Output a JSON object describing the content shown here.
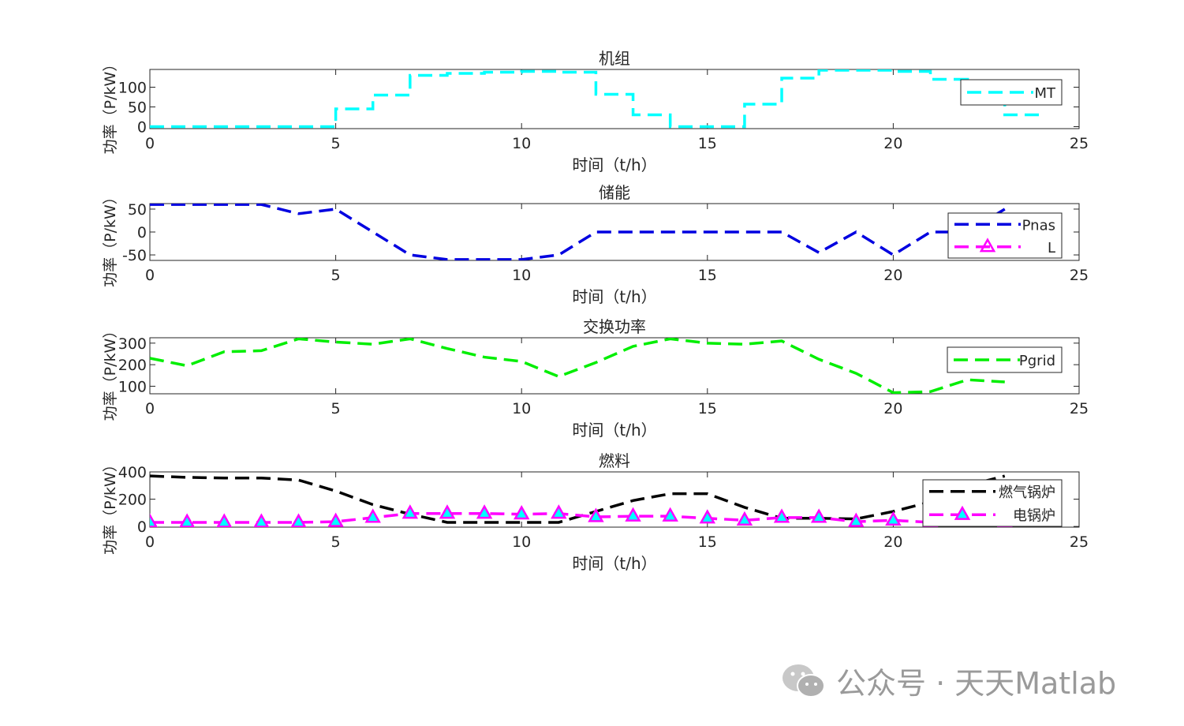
{
  "watermark": {
    "text": "公众号 · 天天Matlab",
    "icon": "wechat-icon"
  },
  "chart_data": [
    {
      "type": "line",
      "title": "机组",
      "xlabel": "时间（t/h）",
      "ylabel": "功率（P/kW）",
      "xlim": [
        0,
        25
      ],
      "ylim": [
        -5,
        145
      ],
      "xticks": [
        0,
        5,
        10,
        15,
        20,
        25
      ],
      "yticks": [
        0,
        50,
        100
      ],
      "legend_position": "top-right",
      "series": [
        {
          "name": "MT",
          "color": "#00ffff",
          "style": "stairs",
          "marker": "none",
          "x": [
            0,
            1,
            2,
            3,
            4,
            5,
            6,
            7,
            8,
            9,
            10,
            11,
            12,
            13,
            14,
            15,
            16,
            17,
            18,
            19,
            20,
            21,
            22,
            23
          ],
          "y": [
            0,
            0,
            0,
            0,
            0,
            45,
            80,
            130,
            135,
            138,
            140,
            138,
            82,
            30,
            0,
            0,
            57,
            123,
            143,
            143,
            140,
            120,
            80,
            30
          ]
        }
      ]
    },
    {
      "type": "line",
      "title": "储能",
      "xlabel": "时间（t/h）",
      "ylabel": "功率（P/kW）",
      "xlim": [
        0,
        25
      ],
      "ylim": [
        -62,
        62
      ],
      "xticks": [
        0,
        5,
        10,
        15,
        20,
        25
      ],
      "yticks": [
        -50,
        0,
        50
      ],
      "legend_position": "top-right",
      "series": [
        {
          "name": "Pnas",
          "color": "#0000e0",
          "style": "dashed",
          "marker": "none",
          "x": [
            0,
            1,
            2,
            3,
            4,
            5,
            6,
            7,
            8,
            9,
            10,
            11,
            12,
            13,
            14,
            15,
            16,
            17,
            18,
            19,
            20,
            21,
            22,
            23
          ],
          "y": [
            60,
            60,
            60,
            60,
            40,
            50,
            0,
            -50,
            -60,
            -60,
            -60,
            -50,
            0,
            0,
            0,
            0,
            0,
            0,
            -45,
            0,
            -50,
            0,
            0,
            50
          ]
        },
        {
          "name": "L",
          "color": "#ff00ff",
          "style": "dashed",
          "marker": "triangle",
          "x": [],
          "y": []
        }
      ]
    },
    {
      "type": "line",
      "title": "交换功率",
      "xlabel": "时间（t/h）",
      "ylabel": "功率（P/kW）",
      "xlim": [
        0,
        25
      ],
      "ylim": [
        65,
        325
      ],
      "xticks": [
        0,
        5,
        10,
        15,
        20,
        25
      ],
      "yticks": [
        100,
        200,
        300
      ],
      "legend_position": "top-right",
      "series": [
        {
          "name": "Pgrid",
          "color": "#00ee00",
          "style": "dashed",
          "marker": "none",
          "x": [
            0,
            1,
            2,
            3,
            4,
            5,
            6,
            7,
            8,
            9,
            10,
            11,
            12,
            13,
            14,
            15,
            16,
            17,
            18,
            19,
            20,
            21,
            22,
            23
          ],
          "y": [
            230,
            195,
            260,
            265,
            320,
            305,
            295,
            320,
            275,
            235,
            215,
            145,
            210,
            285,
            320,
            300,
            295,
            310,
            225,
            160,
            70,
            75,
            130,
            120
          ]
        }
      ]
    },
    {
      "type": "line",
      "title": "燃料",
      "xlabel": "时间（t/h）",
      "ylabel": "功率（P/kW）",
      "xlim": [
        0,
        25
      ],
      "ylim": [
        -5,
        400
      ],
      "xticks": [
        0,
        5,
        10,
        15,
        20,
        25
      ],
      "yticks": [
        0,
        200,
        400
      ],
      "legend_position": "top-right",
      "series": [
        {
          "name": "燃气锅炉",
          "color": "#000000",
          "style": "dashed",
          "marker": "none",
          "x": [
            0,
            1,
            2,
            3,
            4,
            5,
            6,
            7,
            8,
            9,
            10,
            11,
            12,
            13,
            14,
            15,
            16,
            17,
            18,
            19,
            20,
            21,
            22,
            23
          ],
          "y": [
            370,
            360,
            355,
            355,
            340,
            260,
            160,
            90,
            30,
            30,
            30,
            30,
            110,
            190,
            240,
            240,
            140,
            60,
            60,
            55,
            110,
            180,
            300,
            370
          ]
        },
        {
          "name": "电锅炉",
          "color": "#ff00ff",
          "style": "dashed",
          "marker": "triangle",
          "marker_fill": "#00ffff",
          "x": [
            0,
            1,
            2,
            3,
            4,
            5,
            6,
            7,
            8,
            9,
            10,
            11,
            12,
            13,
            14,
            15,
            16,
            17,
            18,
            19,
            20,
            21,
            22,
            23
          ],
          "y": [
            30,
            30,
            30,
            30,
            30,
            35,
            65,
            95,
            95,
            95,
            90,
            95,
            70,
            75,
            75,
            60,
            45,
            65,
            65,
            35,
            45,
            30,
            40,
            30
          ]
        }
      ]
    }
  ]
}
